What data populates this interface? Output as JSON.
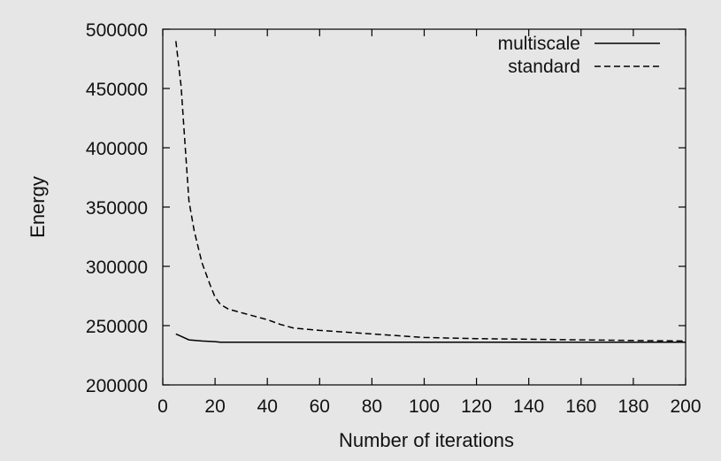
{
  "chart_data": {
    "type": "line",
    "title": "",
    "xlabel": "Number of iterations",
    "ylabel": "Energy",
    "xlim": [
      0,
      200
    ],
    "ylim": [
      200000,
      500000
    ],
    "xticks": [
      "0",
      "20",
      "40",
      "60",
      "80",
      "100",
      "120",
      "140",
      "160",
      "180",
      "200"
    ],
    "yticks": [
      "200000",
      "250000",
      "300000",
      "350000",
      "400000",
      "450000",
      "500000"
    ],
    "grid": false,
    "legend_position": "top-right",
    "series": [
      {
        "name": "multiscale",
        "style": "solid",
        "color": "#000000",
        "x": [
          5,
          7,
          10,
          15,
          20,
          22,
          25,
          40,
          60,
          100,
          150,
          200
        ],
        "y": [
          243000,
          241000,
          238000,
          237000,
          236500,
          236000,
          236000,
          236000,
          236000,
          236000,
          236000,
          236000
        ]
      },
      {
        "name": "standard",
        "style": "dashed",
        "color": "#000000",
        "x": [
          5,
          7,
          8,
          10,
          12,
          15,
          18,
          20,
          22,
          25,
          30,
          35,
          40,
          45,
          50,
          60,
          70,
          80,
          90,
          100,
          110,
          120,
          140,
          160,
          180,
          200
        ],
        "y": [
          490000,
          452000,
          420000,
          355000,
          330000,
          303000,
          285000,
          274000,
          268000,
          264000,
          261000,
          258000,
          255000,
          251000,
          248000,
          246000,
          244500,
          243000,
          241500,
          240000,
          239500,
          239000,
          238500,
          238000,
          237500,
          237000
        ]
      }
    ]
  }
}
